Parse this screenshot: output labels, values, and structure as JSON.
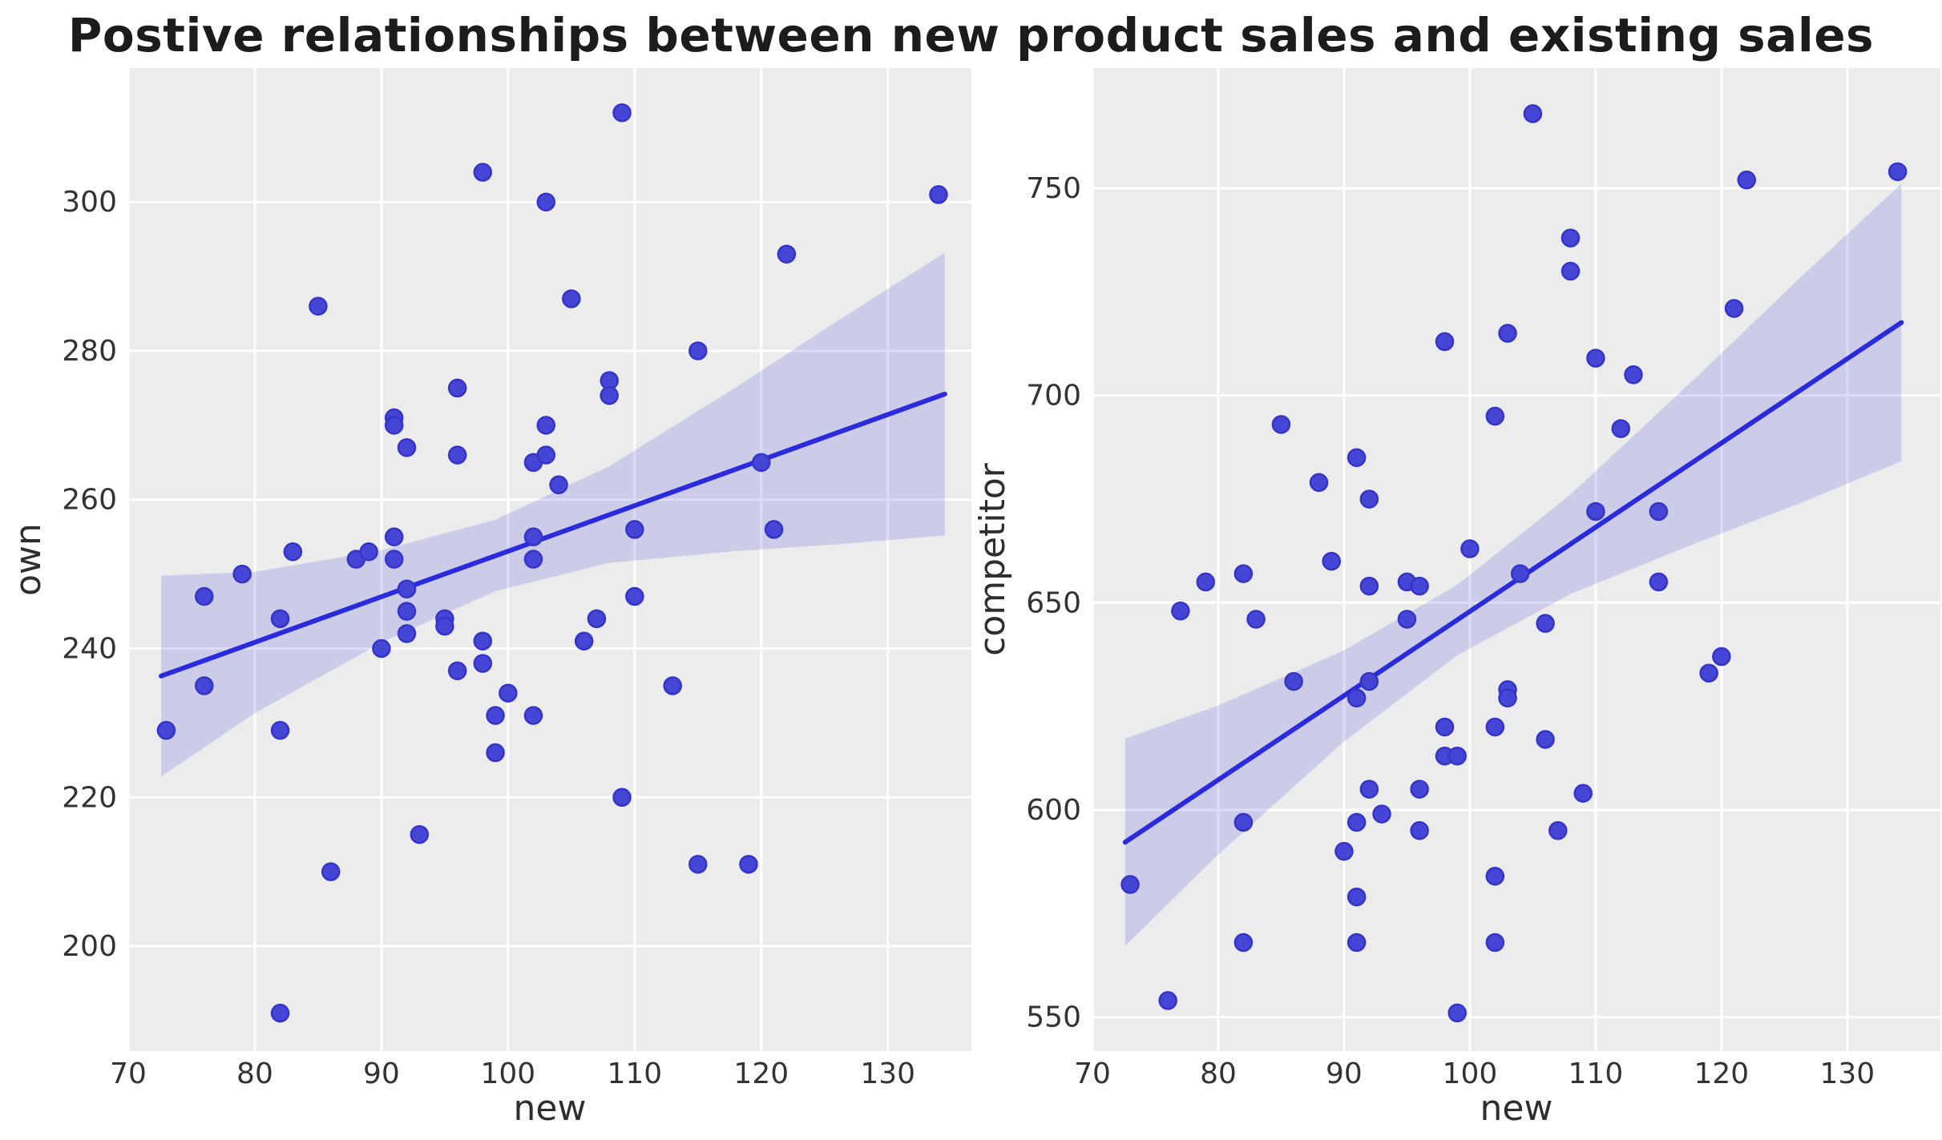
{
  "title": "Postive relationships between new product sales and existing sales",
  "colors": {
    "panel_background": "#ECECEC",
    "grid_line": "#FFFFFF",
    "point_fill": "#4545D6",
    "point_edge": "#3434C8",
    "regression_line": "#2B2BDE",
    "confidence_band": "rgba(68,68,216,0.19)",
    "tick_label": "#333333",
    "axis_label": "#2e2e2e",
    "title": "#1c1c1c"
  },
  "chart_data": {
    "type": "scatter",
    "title": "Postive relationships between new product sales and existing sales",
    "grid": true,
    "legend": false,
    "panels": [
      {
        "xlabel": "new",
        "ylabel": "own",
        "xlim": [
          70,
          136.6
        ],
        "ylim": [
          185.9,
          318
        ],
        "xticks": [
          70,
          80,
          90,
          100,
          110,
          120,
          130
        ],
        "yticks": [
          200,
          220,
          240,
          260,
          280,
          300
        ],
        "points": [
          [
            73,
            229
          ],
          [
            76,
            247
          ],
          [
            76,
            235
          ],
          [
            79,
            250
          ],
          [
            82,
            244
          ],
          [
            82,
            229
          ],
          [
            82,
            191
          ],
          [
            83,
            253
          ],
          [
            85,
            286
          ],
          [
            86,
            210
          ],
          [
            88,
            252
          ],
          [
            89,
            253
          ],
          [
            90,
            240
          ],
          [
            91,
            271
          ],
          [
            91,
            270
          ],
          [
            91,
            255
          ],
          [
            91,
            252
          ],
          [
            92,
            267
          ],
          [
            92,
            248
          ],
          [
            92,
            245
          ],
          [
            92,
            242
          ],
          [
            93,
            215
          ],
          [
            95,
            244
          ],
          [
            95,
            243
          ],
          [
            96,
            275
          ],
          [
            96,
            266
          ],
          [
            96,
            237
          ],
          [
            98,
            304
          ],
          [
            98,
            241
          ],
          [
            98,
            238
          ],
          [
            99,
            231
          ],
          [
            99,
            226
          ],
          [
            100,
            234
          ],
          [
            102,
            265
          ],
          [
            102,
            255
          ],
          [
            102,
            252
          ],
          [
            102,
            231
          ],
          [
            103,
            300
          ],
          [
            103,
            270
          ],
          [
            103,
            266
          ],
          [
            104,
            262
          ],
          [
            105,
            287
          ],
          [
            106,
            241
          ],
          [
            107,
            244
          ],
          [
            108,
            276
          ],
          [
            108,
            274
          ],
          [
            109,
            312
          ],
          [
            109,
            220
          ],
          [
            110,
            256
          ],
          [
            110,
            247
          ],
          [
            113,
            235
          ],
          [
            115,
            280
          ],
          [
            115,
            211
          ],
          [
            119,
            211
          ],
          [
            120,
            265
          ],
          [
            121,
            256
          ],
          [
            122,
            293
          ],
          [
            134,
            301
          ]
        ],
        "regression": {
          "x": [
            72.6,
            134.5
          ],
          "y": [
            236.3,
            274.2
          ]
        },
        "ci_band": {
          "x": [
            72.6,
            80,
            90,
            99,
            108,
            118,
            126,
            134.5
          ],
          "upper": [
            249.8,
            250.3,
            253.2,
            257.3,
            264.5,
            275.1,
            284.0,
            293.2
          ],
          "lower": [
            222.8,
            231.3,
            240.8,
            247.7,
            251.5,
            253.1,
            254.0,
            255.2
          ]
        }
      },
      {
        "xlabel": "new",
        "ylabel": "competitor",
        "xlim": [
          70,
          137.4
        ],
        "ylim": [
          541.8,
          779
        ],
        "xticks": [
          70,
          80,
          90,
          100,
          110,
          120,
          130
        ],
        "yticks": [
          550,
          600,
          650,
          700,
          750
        ],
        "points": [
          [
            73,
            582
          ],
          [
            76,
            554
          ],
          [
            77,
            648
          ],
          [
            79,
            655
          ],
          [
            82,
            657
          ],
          [
            82,
            597
          ],
          [
            82,
            568
          ],
          [
            83,
            646
          ],
          [
            85,
            693
          ],
          [
            86,
            631
          ],
          [
            88,
            679
          ],
          [
            89,
            660
          ],
          [
            90,
            590
          ],
          [
            91,
            685
          ],
          [
            91,
            627
          ],
          [
            91,
            597
          ],
          [
            91,
            579
          ],
          [
            91,
            568
          ],
          [
            92,
            675
          ],
          [
            92,
            654
          ],
          [
            92,
            631
          ],
          [
            92,
            605
          ],
          [
            93,
            599
          ],
          [
            95,
            655
          ],
          [
            95,
            646
          ],
          [
            96,
            654
          ],
          [
            96,
            605
          ],
          [
            96,
            595
          ],
          [
            98,
            713
          ],
          [
            98,
            620
          ],
          [
            98,
            613
          ],
          [
            99,
            613
          ],
          [
            99,
            551
          ],
          [
            100,
            663
          ],
          [
            102,
            695
          ],
          [
            102,
            620
          ],
          [
            102,
            584
          ],
          [
            102,
            568
          ],
          [
            103,
            715
          ],
          [
            103,
            629
          ],
          [
            103,
            627
          ],
          [
            104,
            657
          ],
          [
            105,
            768
          ],
          [
            106,
            645
          ],
          [
            106,
            617
          ],
          [
            107,
            595
          ],
          [
            108,
            738
          ],
          [
            108,
            730
          ],
          [
            109,
            604
          ],
          [
            110,
            709
          ],
          [
            110,
            672
          ],
          [
            112,
            692
          ],
          [
            113,
            705
          ],
          [
            115,
            672
          ],
          [
            115,
            655
          ],
          [
            119,
            633
          ],
          [
            120,
            637
          ],
          [
            121,
            721
          ],
          [
            122,
            752
          ],
          [
            134,
            754
          ]
        ],
        "regression": {
          "x": [
            72.6,
            134.3
          ],
          "y": [
            592.2,
            717.6
          ]
        },
        "ci_band": {
          "x": [
            72.6,
            80,
            90,
            99,
            108,
            118,
            126,
            134.3
          ],
          "upper": [
            617.2,
            625.2,
            638.5,
            654.3,
            676.1,
            704.4,
            727.7,
            751.1
          ],
          "lower": [
            567.2,
            589.2,
            616.5,
            637.3,
            652.1,
            664.4,
            673.7,
            684.1
          ]
        }
      }
    ]
  }
}
